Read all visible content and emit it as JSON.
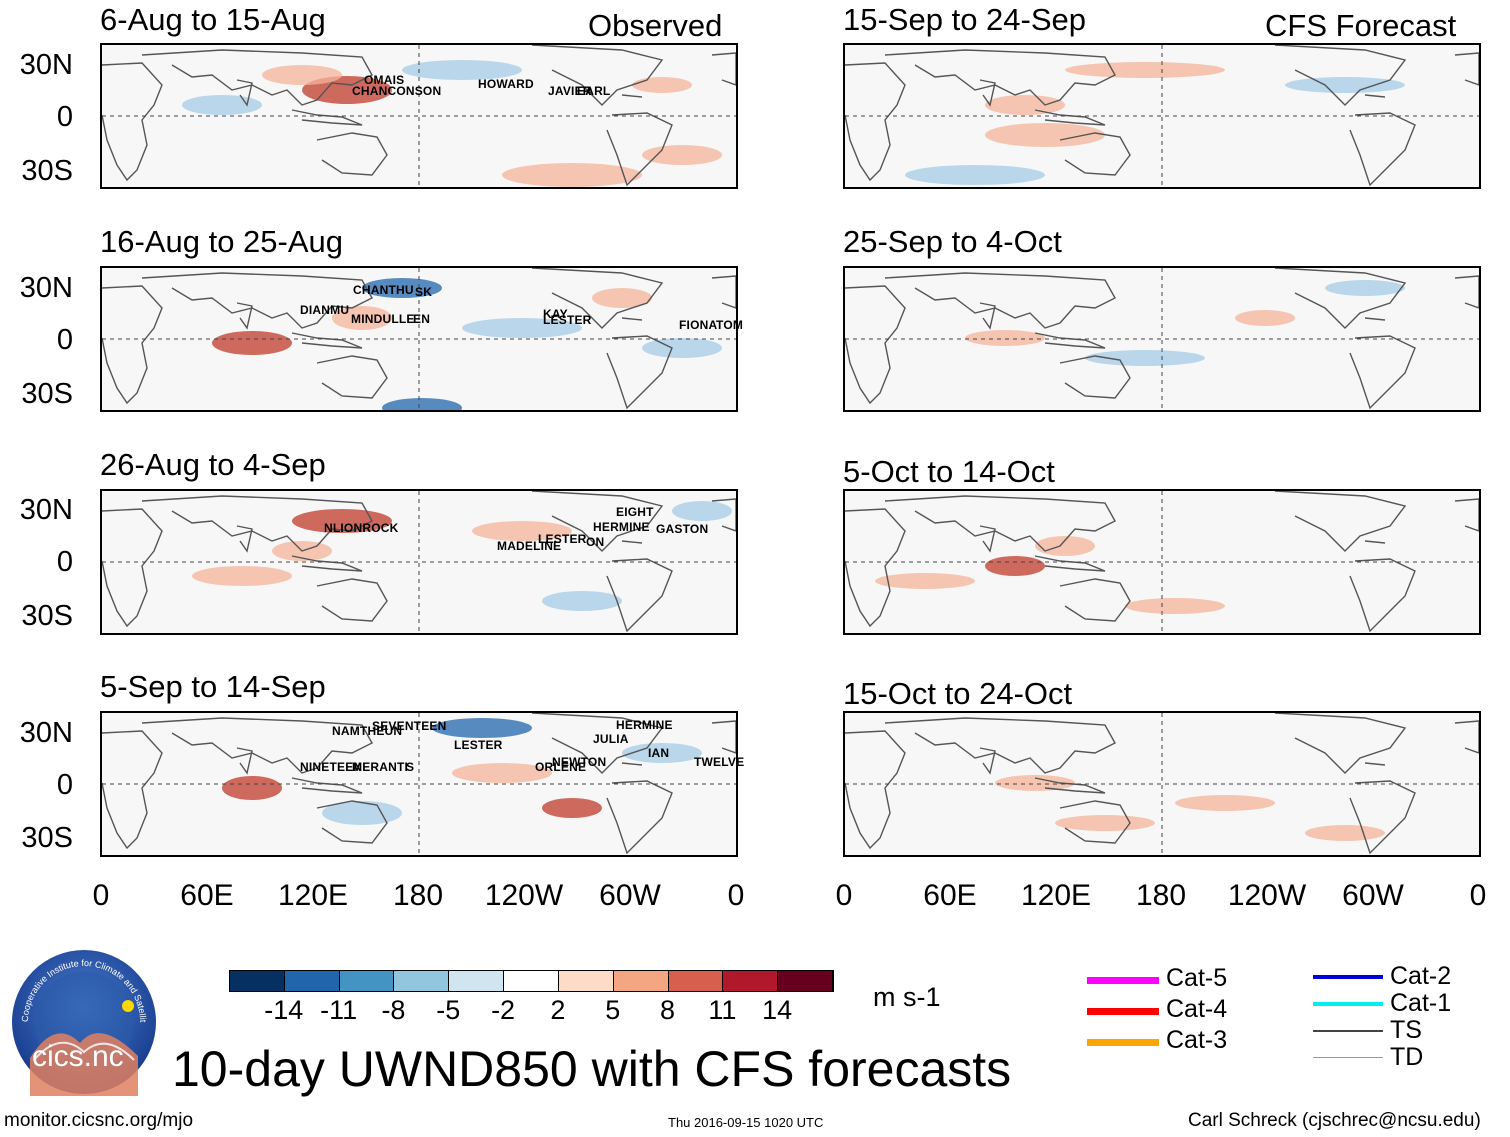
{
  "colors": {
    "land_outline": "#555555",
    "neg_strong": "#2166ac",
    "neg_light": "#a6cbe6",
    "pos_light": "#f4b49a",
    "pos_strong": "#c0392b",
    "storm_marker": "#c00000"
  },
  "lat_labels": [
    "30N",
    "0",
    "30S"
  ],
  "lon_labels": [
    "0",
    "60E",
    "120E",
    "180",
    "120W",
    "60W",
    "0"
  ],
  "panels_observed": [
    {
      "title": "6-Aug to 15-Aug",
      "tag": "Observed",
      "storms": [
        "OMAIS",
        "CHANCONSON",
        "HOWARD",
        "JAVIER",
        "EARL"
      ]
    },
    {
      "title": "16-Aug to 25-Aug",
      "storms": [
        "CHANTHU",
        "SK",
        "DIANMU",
        "MINDULLE",
        "EN",
        "KAY",
        "LESTER",
        "FIONA",
        "TOM"
      ]
    },
    {
      "title": "26-Aug to 4-Sep",
      "storms": [
        "NLIONROCK",
        "MADELINE",
        "LESTER",
        "ON",
        "EIGHT",
        "HERMINE",
        "GASTON"
      ]
    },
    {
      "title": "5-Sep to 14-Sep",
      "storms": [
        "SEVENTEEN",
        "NAMTHEUN",
        "LESTER",
        "HERMINE",
        "JULIA",
        "NINETEEN",
        "MERANTI",
        "S",
        "ORLENE",
        "NEWTON",
        "IAN",
        "TWELVE"
      ]
    }
  ],
  "panels_forecast": [
    {
      "title": "15-Sep to 24-Sep",
      "tag": "CFS Forecast"
    },
    {
      "title": "25-Sep to 4-Oct"
    },
    {
      "title": "5-Oct to 14-Oct"
    },
    {
      "title": "15-Oct to 24-Oct"
    }
  ],
  "colorbar": {
    "colors": [
      "#053061",
      "#2166ac",
      "#4393c3",
      "#92c5de",
      "#d1e5f0",
      "#ffffff",
      "#fddbc7",
      "#f4a582",
      "#d6604d",
      "#b2182b",
      "#67001f"
    ],
    "labels": [
      "-14",
      "-11",
      "-8",
      "-5",
      "-2",
      "2",
      "5",
      "8",
      "11",
      "14"
    ],
    "units": "m s-1"
  },
  "legend": [
    {
      "label": "Cat-5",
      "color": "#ff00ff"
    },
    {
      "label": "Cat-4",
      "color": "#ff0000"
    },
    {
      "label": "Cat-3",
      "color": "#ffa500"
    },
    {
      "label": "Cat-2",
      "color": "#0000dd"
    },
    {
      "label": "Cat-1",
      "color": "#00eeee"
    },
    {
      "label": "TS",
      "color": "#444444"
    },
    {
      "label": "TD",
      "color": "#999999"
    }
  ],
  "logo": {
    "text": "cics.nc",
    "arc_text": "Cooperative Institute for Climate and Satellites"
  },
  "main_title": "10-day UWND850 with CFS forecasts",
  "footer": {
    "url": "monitor.cicsnc.org/mjo",
    "timestamp": "Thu 2016-09-15 1020 UTC",
    "credit": "Carl Schreck (cjschrec@ncsu.edu)"
  }
}
